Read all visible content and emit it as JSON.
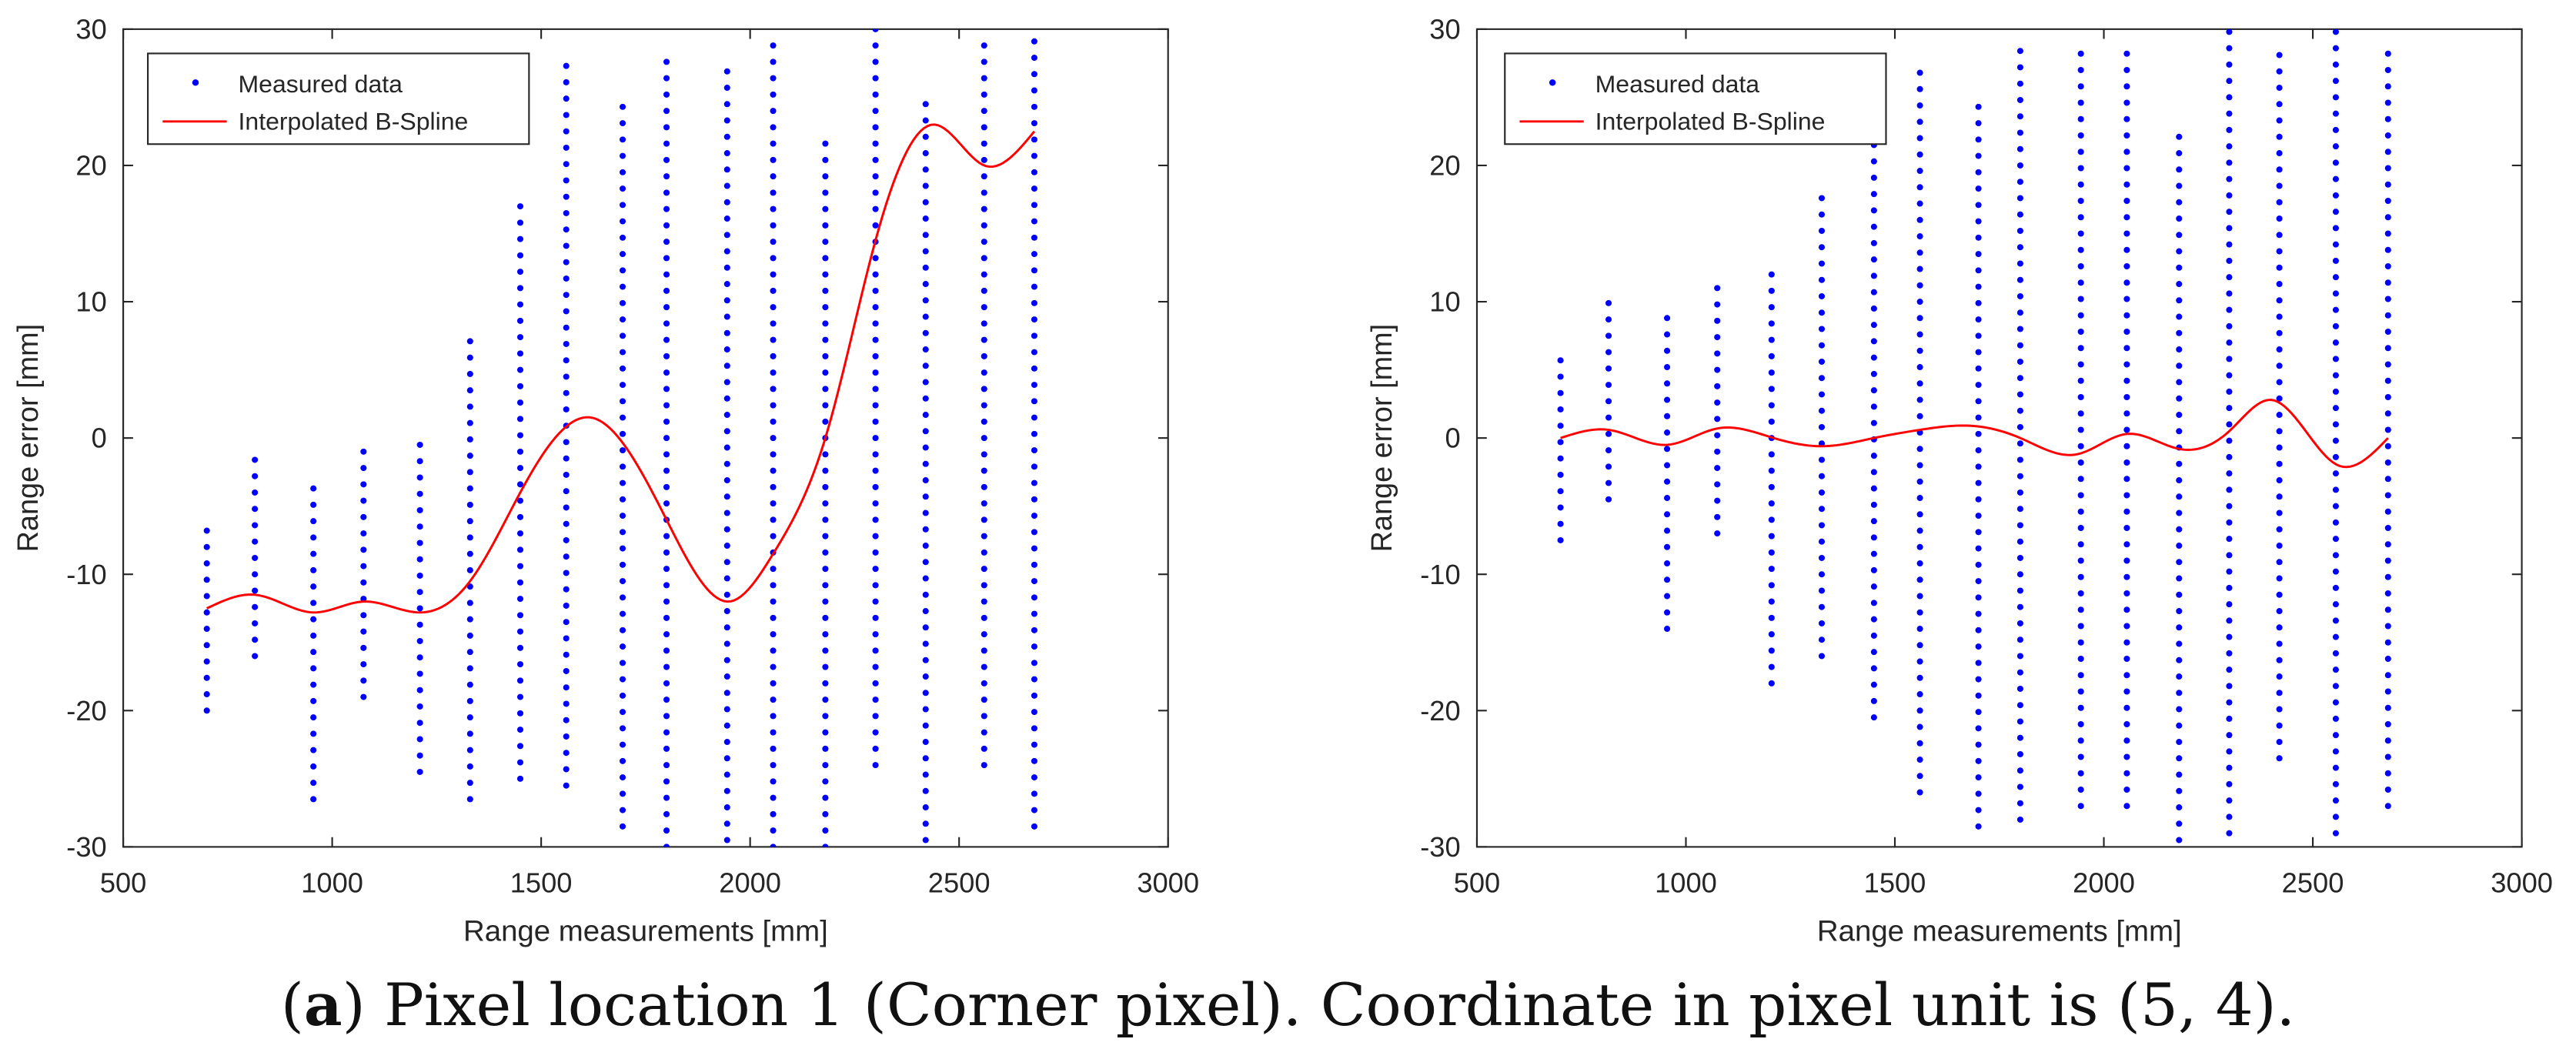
{
  "caption": {
    "label": "a",
    "open_paren": "(",
    "close_paren": ")",
    "text": " Pixel location 1 (Corner pixel). Coordinate in pixel unit is (5, 4)."
  },
  "chart_data": [
    {
      "type": "scatter",
      "xlabel": "Range measurements [mm]",
      "ylabel": "Range error [mm]",
      "xlim": [
        500,
        3000
      ],
      "ylim": [
        -30,
        30
      ],
      "xticks": [
        500,
        1000,
        1500,
        2000,
        2500,
        3000
      ],
      "yticks": [
        -30,
        -20,
        -10,
        0,
        10,
        20,
        30
      ],
      "legend": {
        "position": "top-left",
        "entries": [
          "Measured data",
          "Interpolated B-Spline"
        ]
      },
      "colors": {
        "scatter": "#0000ff",
        "spline": "#ff0000"
      },
      "series": [
        {
          "name": "Measured data",
          "kind": "scatter",
          "columns": [
            {
              "x": 700,
              "y_min": -20,
              "y_max": -6
            },
            {
              "x": 815,
              "y_min": -16,
              "y_max": -1
            },
            {
              "x": 955,
              "y_min": -26.5,
              "y_max": -3.5
            },
            {
              "x": 1075,
              "y_min": -19,
              "y_max": 0
            },
            {
              "x": 1210,
              "y_min": -24.5,
              "y_max": 0.5
            },
            {
              "x": 1330,
              "y_min": -26.5,
              "y_max": 7.5
            },
            {
              "x": 1450,
              "y_min": -25,
              "y_max": 17.5
            },
            {
              "x": 1560,
              "y_min": -25.5,
              "y_max": 27.5
            },
            {
              "x": 1695,
              "y_min": -28.5,
              "y_max": 24.5
            },
            {
              "x": 1800,
              "y_min": -30,
              "y_max": 28.5
            },
            {
              "x": 1945,
              "y_min": -29.5,
              "y_max": 28
            },
            {
              "x": 2055,
              "y_min": -30,
              "y_max": 29
            },
            {
              "x": 2180,
              "y_min": -30,
              "y_max": 22
            },
            {
              "x": 2300,
              "y_min": -24,
              "y_max": 30
            },
            {
              "x": 2420,
              "y_min": -29.5,
              "y_max": 25.5
            },
            {
              "x": 2560,
              "y_min": -24,
              "y_max": 29
            },
            {
              "x": 2680,
              "y_min": -28.5,
              "y_max": 30
            }
          ]
        },
        {
          "name": "Interpolated B-Spline",
          "kind": "line",
          "x": [
            700,
            815,
            955,
            1075,
            1210,
            1330,
            1450,
            1620,
            1800,
            1950,
            2055,
            2180,
            2300,
            2440,
            2560,
            2680
          ],
          "y": [
            -12.5,
            -11.5,
            -12.8,
            -12,
            -12.8,
            -10.5,
            -4,
            1.5,
            -6,
            -12,
            -8.5,
            0,
            14.5,
            23,
            20,
            22.5
          ]
        }
      ]
    },
    {
      "type": "scatter",
      "xlabel": "Range measurements [mm]",
      "ylabel": "Range error [mm]",
      "xlim": [
        500,
        3000
      ],
      "ylim": [
        -30,
        30
      ],
      "xticks": [
        500,
        1000,
        1500,
        2000,
        2500,
        3000
      ],
      "yticks": [
        -30,
        -20,
        -10,
        0,
        10,
        20,
        30
      ],
      "legend": {
        "position": "top-left",
        "entries": [
          "Measured data",
          "Interpolated B-Spline"
        ]
      },
      "colors": {
        "scatter": "#0000ff",
        "spline": "#ff0000"
      },
      "series": [
        {
          "name": "Measured data",
          "kind": "scatter",
          "columns": [
            {
              "x": 700,
              "y_min": -7.5,
              "y_max": 6.5
            },
            {
              "x": 815,
              "y_min": -4.5,
              "y_max": 10.5
            },
            {
              "x": 955,
              "y_min": -14,
              "y_max": 9.5
            },
            {
              "x": 1075,
              "y_min": -7,
              "y_max": 12
            },
            {
              "x": 1205,
              "y_min": -18,
              "y_max": 13
            },
            {
              "x": 1325,
              "y_min": -16,
              "y_max": 18
            },
            {
              "x": 1450,
              "y_min": -20.5,
              "y_max": 22
            },
            {
              "x": 1560,
              "y_min": -26,
              "y_max": 27
            },
            {
              "x": 1700,
              "y_min": -28.5,
              "y_max": 24.5
            },
            {
              "x": 1800,
              "y_min": -28,
              "y_max": 29
            },
            {
              "x": 1945,
              "y_min": -27,
              "y_max": 29
            },
            {
              "x": 2055,
              "y_min": -27,
              "y_max": 28.5
            },
            {
              "x": 2180,
              "y_min": -29.5,
              "y_max": 22.5
            },
            {
              "x": 2300,
              "y_min": -29,
              "y_max": 30
            },
            {
              "x": 2420,
              "y_min": -23.5,
              "y_max": 28.5
            },
            {
              "x": 2555,
              "y_min": -29,
              "y_max": 30
            },
            {
              "x": 2680,
              "y_min": -27,
              "y_max": 29
            }
          ]
        },
        {
          "name": "Interpolated B-Spline",
          "kind": "line",
          "x": [
            700,
            815,
            955,
            1075,
            1210,
            1330,
            1450,
            1560,
            1680,
            1800,
            1935,
            2055,
            2180,
            2300,
            2400,
            2560,
            2680
          ],
          "y": [
            0,
            0.6,
            -0.5,
            0.7,
            0,
            -0.6,
            0,
            0.6,
            0.9,
            0,
            -1.2,
            0.3,
            -0.8,
            0.5,
            2.8,
            -2,
            0
          ]
        }
      ]
    }
  ]
}
